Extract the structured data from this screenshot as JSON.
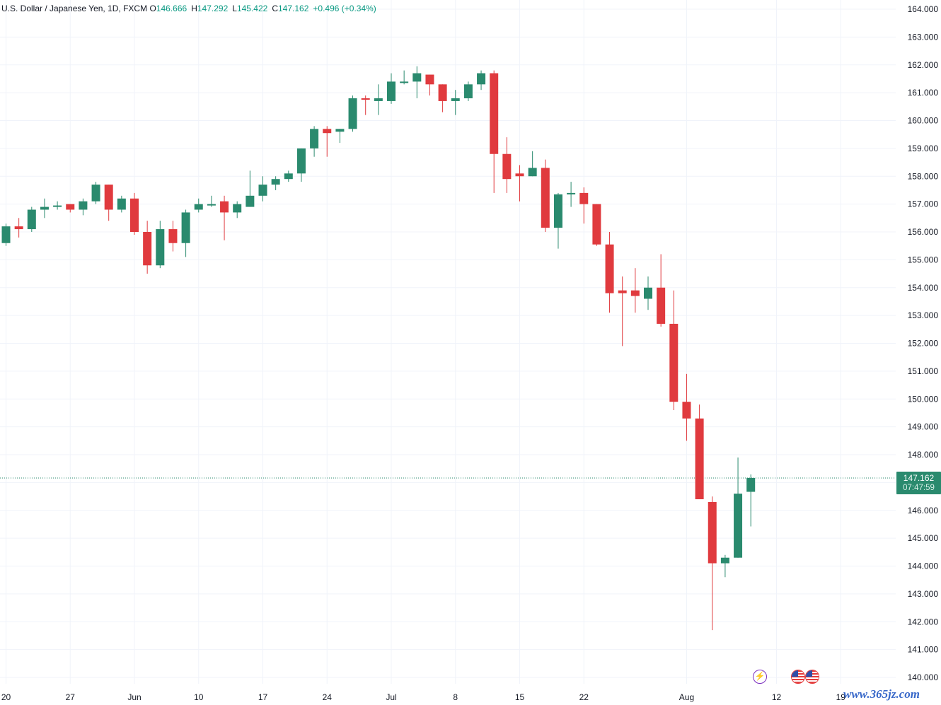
{
  "legend": {
    "symbol": "U.S. Dollar / Japanese Yen, 1D, FXCM",
    "o_label": "O",
    "o_value": "146.666",
    "h_label": "H",
    "h_value": "147.292",
    "l_label": "L",
    "l_value": "145.422",
    "c_label": "C",
    "c_value": "147.162",
    "change": "+0.496 (+0.34%)"
  },
  "price_tag": {
    "price": "147.162",
    "countdown": "07:47:59"
  },
  "watermark": "www.365jz.com",
  "icons": {
    "event": "flash-icon",
    "flags": [
      "us-flag-icon",
      "us-flag-icon"
    ]
  },
  "colors": {
    "up": "#2a8a6e",
    "down": "#e03a3e",
    "grid": "#f0f3fa",
    "axis_text": "#131722"
  },
  "chart_data": {
    "type": "candlestick",
    "ylim": [
      139.8,
      164.3
    ],
    "y_ticks": [
      "164.000",
      "163.000",
      "162.000",
      "161.000",
      "160.000",
      "159.000",
      "158.000",
      "157.000",
      "156.000",
      "155.000",
      "154.000",
      "153.000",
      "152.000",
      "151.000",
      "150.000",
      "149.000",
      "148.000",
      "147.000",
      "146.000",
      "145.000",
      "144.000",
      "143.000",
      "142.000",
      "141.000",
      "140.000"
    ],
    "x_ticks": [
      {
        "label": "20",
        "i": 0
      },
      {
        "label": "27",
        "i": 5
      },
      {
        "label": "Jun",
        "i": 10
      },
      {
        "label": "10",
        "i": 15
      },
      {
        "label": "17",
        "i": 20
      },
      {
        "label": "24",
        "i": 25
      },
      {
        "label": "Jul",
        "i": 30
      },
      {
        "label": "8",
        "i": 35
      },
      {
        "label": "15",
        "i": 40
      },
      {
        "label": "22",
        "i": 45
      },
      {
        "label": "Aug",
        "i": 53
      },
      {
        "label": "12",
        "i": 60
      },
      {
        "label": "19",
        "i": 65
      }
    ],
    "last_price": 147.162,
    "candles": [
      {
        "o": 155.6,
        "h": 156.3,
        "l": 155.5,
        "c": 156.2
      },
      {
        "o": 156.2,
        "h": 156.5,
        "l": 155.8,
        "c": 156.1
      },
      {
        "o": 156.1,
        "h": 156.9,
        "l": 156.0,
        "c": 156.8
      },
      {
        "o": 156.8,
        "h": 157.2,
        "l": 156.5,
        "c": 156.9
      },
      {
        "o": 156.9,
        "h": 157.1,
        "l": 156.8,
        "c": 156.95
      },
      {
        "o": 157.0,
        "h": 157.0,
        "l": 156.7,
        "c": 156.8
      },
      {
        "o": 156.8,
        "h": 157.2,
        "l": 156.6,
        "c": 157.1
      },
      {
        "o": 157.1,
        "h": 157.8,
        "l": 157.0,
        "c": 157.7
      },
      {
        "o": 157.7,
        "h": 157.7,
        "l": 156.4,
        "c": 156.8
      },
      {
        "o": 156.8,
        "h": 157.3,
        "l": 156.7,
        "c": 157.2
      },
      {
        "o": 157.2,
        "h": 157.4,
        "l": 155.9,
        "c": 156.0
      },
      {
        "o": 156.0,
        "h": 156.4,
        "l": 154.5,
        "c": 154.8
      },
      {
        "o": 154.8,
        "h": 156.4,
        "l": 154.7,
        "c": 156.1
      },
      {
        "o": 156.1,
        "h": 156.4,
        "l": 155.3,
        "c": 155.6
      },
      {
        "o": 155.6,
        "h": 156.8,
        "l": 155.1,
        "c": 156.7
      },
      {
        "o": 156.8,
        "h": 157.2,
        "l": 156.7,
        "c": 157.0
      },
      {
        "o": 157.0,
        "h": 157.3,
        "l": 156.9,
        "c": 157.0
      },
      {
        "o": 157.1,
        "h": 157.3,
        "l": 155.7,
        "c": 156.7
      },
      {
        "o": 156.7,
        "h": 157.1,
        "l": 156.5,
        "c": 157.0
      },
      {
        "o": 156.9,
        "h": 158.2,
        "l": 156.9,
        "c": 157.3
      },
      {
        "o": 157.3,
        "h": 158.0,
        "l": 157.1,
        "c": 157.7
      },
      {
        "o": 157.7,
        "h": 158.0,
        "l": 157.5,
        "c": 157.9
      },
      {
        "o": 157.9,
        "h": 158.2,
        "l": 157.8,
        "c": 158.1
      },
      {
        "o": 158.1,
        "h": 159.0,
        "l": 157.8,
        "c": 159.0
      },
      {
        "o": 159.0,
        "h": 159.8,
        "l": 158.7,
        "c": 159.7
      },
      {
        "o": 159.7,
        "h": 159.8,
        "l": 158.7,
        "c": 159.55
      },
      {
        "o": 159.6,
        "h": 159.7,
        "l": 159.2,
        "c": 159.7
      },
      {
        "o": 159.7,
        "h": 160.9,
        "l": 159.6,
        "c": 160.8
      },
      {
        "o": 160.8,
        "h": 160.9,
        "l": 160.2,
        "c": 160.75
      },
      {
        "o": 160.7,
        "h": 161.3,
        "l": 160.2,
        "c": 160.8
      },
      {
        "o": 160.7,
        "h": 161.7,
        "l": 160.6,
        "c": 161.4
      },
      {
        "o": 161.4,
        "h": 161.8,
        "l": 161.3,
        "c": 161.4
      },
      {
        "o": 161.4,
        "h": 161.95,
        "l": 160.8,
        "c": 161.7
      },
      {
        "o": 161.65,
        "h": 161.65,
        "l": 160.9,
        "c": 161.3
      },
      {
        "o": 161.3,
        "h": 161.3,
        "l": 160.3,
        "c": 160.7
      },
      {
        "o": 160.7,
        "h": 161.1,
        "l": 160.2,
        "c": 160.8
      },
      {
        "o": 160.8,
        "h": 161.4,
        "l": 160.7,
        "c": 161.3
      },
      {
        "o": 161.3,
        "h": 161.8,
        "l": 161.1,
        "c": 161.7
      },
      {
        "o": 161.7,
        "h": 161.8,
        "l": 157.4,
        "c": 158.8
      },
      {
        "o": 158.8,
        "h": 159.4,
        "l": 157.4,
        "c": 157.9
      },
      {
        "o": 158.1,
        "h": 158.4,
        "l": 157.1,
        "c": 158.0
      },
      {
        "o": 158.0,
        "h": 158.9,
        "l": 158.0,
        "c": 158.3
      },
      {
        "o": 158.3,
        "h": 158.6,
        "l": 156.0,
        "c": 156.15
      },
      {
        "o": 156.15,
        "h": 157.4,
        "l": 155.4,
        "c": 157.35
      },
      {
        "o": 157.4,
        "h": 157.8,
        "l": 156.9,
        "c": 157.4
      },
      {
        "o": 157.4,
        "h": 157.6,
        "l": 156.3,
        "c": 157.0
      },
      {
        "o": 157.0,
        "h": 157.0,
        "l": 155.5,
        "c": 155.55
      },
      {
        "o": 155.55,
        "h": 156.0,
        "l": 153.1,
        "c": 153.8
      },
      {
        "o": 153.9,
        "h": 154.4,
        "l": 151.9,
        "c": 153.8
      },
      {
        "o": 153.9,
        "h": 154.7,
        "l": 153.1,
        "c": 153.7
      },
      {
        "o": 153.6,
        "h": 154.4,
        "l": 153.2,
        "c": 154.0
      },
      {
        "o": 154.0,
        "h": 155.2,
        "l": 152.6,
        "c": 152.7
      },
      {
        "o": 152.7,
        "h": 153.9,
        "l": 149.6,
        "c": 149.9
      },
      {
        "o": 149.9,
        "h": 150.9,
        "l": 148.5,
        "c": 149.3
      },
      {
        "o": 149.3,
        "h": 149.8,
        "l": 146.4,
        "c": 146.4
      },
      {
        "o": 146.3,
        "h": 146.5,
        "l": 141.7,
        "c": 144.1
      },
      {
        "o": 144.1,
        "h": 144.4,
        "l": 143.6,
        "c": 144.3
      },
      {
        "o": 144.3,
        "h": 147.9,
        "l": 144.3,
        "c": 146.6
      },
      {
        "o": 146.666,
        "h": 147.292,
        "l": 145.422,
        "c": 147.162
      }
    ]
  }
}
